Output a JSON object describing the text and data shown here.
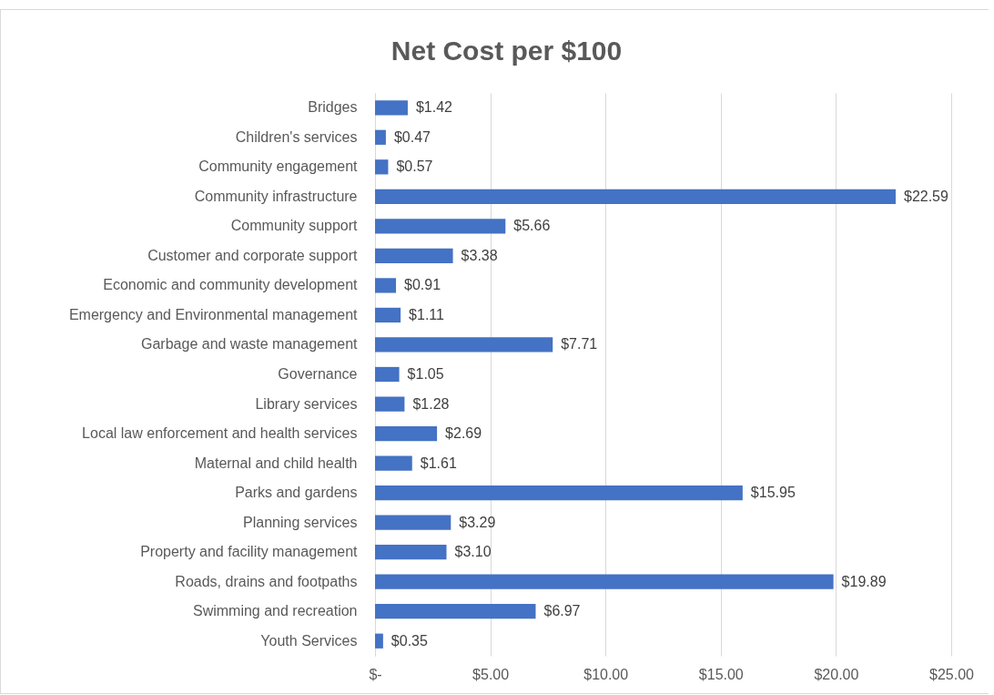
{
  "chart_data": {
    "type": "bar",
    "orientation": "horizontal",
    "title": "Net Cost per $100",
    "categories": [
      "Bridges",
      "Children's services",
      "Community engagement",
      "Community infrastructure",
      "Community support",
      "Customer and corporate support",
      "Economic and community development",
      "Emergency and Environmental management",
      "Garbage and waste management",
      "Governance",
      "Library services",
      "Local law enforcement and health services",
      "Maternal and child health",
      "Parks and gardens",
      "Planning services",
      "Property and facility management",
      "Roads, drains and footpaths",
      "Swimming and recreation",
      "Youth Services"
    ],
    "values": [
      1.42,
      0.47,
      0.57,
      22.59,
      5.66,
      3.38,
      0.91,
      1.11,
      7.71,
      1.05,
      1.28,
      2.69,
      1.61,
      15.95,
      3.29,
      3.1,
      19.89,
      6.97,
      0.35
    ],
    "value_labels": [
      "$1.42",
      "$0.47",
      "$0.57",
      "$22.59",
      "$5.66",
      "$3.38",
      "$0.91",
      "$1.11",
      "$7.71",
      "$1.05",
      "$1.28",
      "$2.69",
      "$1.61",
      "$15.95",
      "$3.29",
      "$3.10",
      "$19.89",
      "$6.97",
      "$0.35"
    ],
    "color": "#4472c4",
    "xlim": [
      0,
      25
    ],
    "xticks": [
      {
        "value": 0,
        "label": "$-"
      },
      {
        "value": 5,
        "label": "$5.00"
      },
      {
        "value": 10,
        "label": "$10.00"
      },
      {
        "value": 15,
        "label": "$15.00"
      },
      {
        "value": 20,
        "label": "$20.00"
      },
      {
        "value": 25,
        "label": "$25.00"
      }
    ],
    "grid": "x"
  }
}
